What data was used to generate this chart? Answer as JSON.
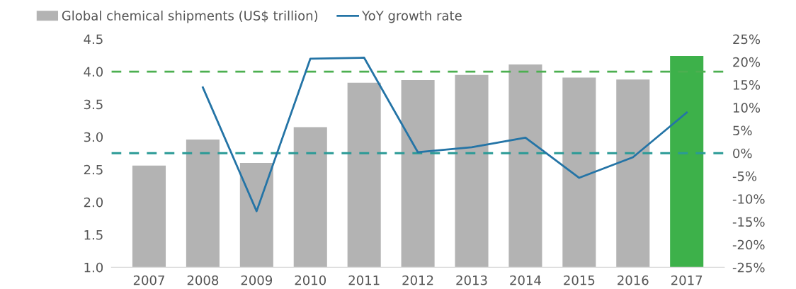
{
  "chart_data": {
    "type": "bar",
    "categories": [
      "2007",
      "2008",
      "2009",
      "2010",
      "2011",
      "2012",
      "2013",
      "2014",
      "2015",
      "2016",
      "2017"
    ],
    "series": [
      {
        "name": "Global chemical shipments (US$ trillion)",
        "color": "#b3b3b3",
        "colors": [
          "#b3b3b3",
          "#b3b3b3",
          "#b3b3b3",
          "#b3b3b3",
          "#b3b3b3",
          "#b3b3b3",
          "#b3b3b3",
          "#b3b3b3",
          "#b3b3b3",
          "#b3b3b3",
          "#3db14a"
        ],
        "values": [
          2.56,
          2.96,
          2.6,
          3.15,
          3.83,
          3.87,
          3.95,
          4.11,
          3.91,
          3.88,
          4.24
        ]
      },
      {
        "name": "YoY growth rate",
        "type": "line",
        "axis": "y2",
        "color": "#2474a6",
        "values": [
          null,
          14.4,
          -12.7,
          20.7,
          20.9,
          0.2,
          1.3,
          3.4,
          -5.4,
          -0.9,
          8.9
        ]
      }
    ],
    "ylim": [
      1.0,
      4.5
    ],
    "yticks": [
      {
        "value": 1.0,
        "label": "1.0"
      },
      {
        "value": 1.5,
        "label": "1.5"
      },
      {
        "value": 2.0,
        "label": "2.0"
      },
      {
        "value": 2.5,
        "label": "2.5"
      },
      {
        "value": 3.0,
        "label": "3.0"
      },
      {
        "value": 3.5,
        "label": "3.5"
      },
      {
        "value": 4.0,
        "label": "4.0"
      },
      {
        "value": 4.5,
        "label": "4.5"
      }
    ],
    "y2lim": [
      -25,
      25
    ],
    "y2ticks": [
      {
        "value": -25,
        "label": "-25%"
      },
      {
        "value": -20,
        "label": "-20%"
      },
      {
        "value": -15,
        "label": "-15%"
      },
      {
        "value": -10,
        "label": "-10%"
      },
      {
        "value": -5,
        "label": "-5%"
      },
      {
        "value": 0,
        "label": "0%"
      },
      {
        "value": 5,
        "label": "5%"
      },
      {
        "value": 10,
        "label": "10%"
      },
      {
        "value": 15,
        "label": "15%"
      },
      {
        "value": 20,
        "label": "20%"
      },
      {
        "value": 25,
        "label": "25%"
      }
    ],
    "ref_lines": [
      {
        "axis": "y",
        "value": 4.0,
        "color": "#4caf50",
        "line_style": "dashed"
      },
      {
        "axis": "y2",
        "value": 0,
        "color": "#2a9a96",
        "line_style": "dashed"
      }
    ],
    "legend": "top left",
    "grid": false,
    "marker": "none",
    "line_style": "solid"
  }
}
